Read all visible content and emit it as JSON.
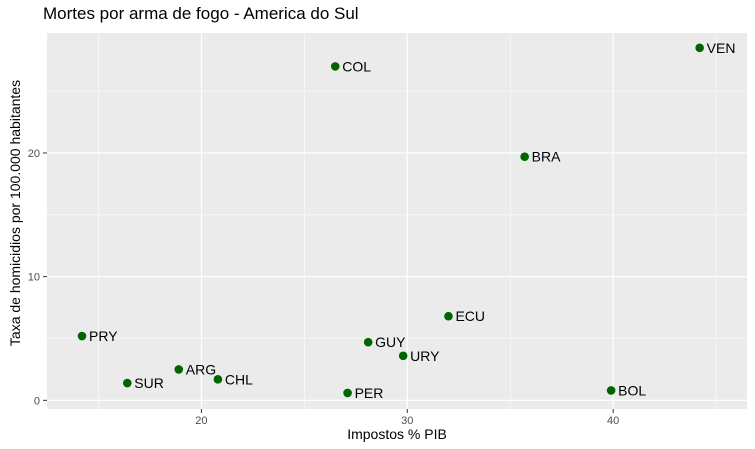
{
  "chart_data": {
    "type": "scatter",
    "title": "Mortes por arma de fogo - America do Sul",
    "xlabel": "Impostos % PIB",
    "ylabel": "Taxa de homicidios por 100.000 habitantes",
    "xlim": [
      12.5,
      46.5
    ],
    "ylim": [
      -0.7,
      29.7
    ],
    "x_ticks": [
      20,
      30,
      40
    ],
    "y_ticks": [
      0,
      10,
      20
    ],
    "grid": true,
    "point_color": "#006400",
    "panel_background": "#ebebeb",
    "points": [
      {
        "label": "VEN",
        "x": 44.2,
        "y": 28.5
      },
      {
        "label": "COL",
        "x": 26.5,
        "y": 27.0
      },
      {
        "label": "BRA",
        "x": 35.7,
        "y": 19.7
      },
      {
        "label": "ECU",
        "x": 32.0,
        "y": 6.8
      },
      {
        "label": "PRY",
        "x": 14.2,
        "y": 5.2
      },
      {
        "label": "GUY",
        "x": 28.1,
        "y": 4.7
      },
      {
        "label": "URY",
        "x": 29.8,
        "y": 3.6
      },
      {
        "label": "ARG",
        "x": 18.9,
        "y": 2.5
      },
      {
        "label": "CHL",
        "x": 20.8,
        "y": 1.7
      },
      {
        "label": "SUR",
        "x": 16.4,
        "y": 1.4
      },
      {
        "label": "BOL",
        "x": 39.9,
        "y": 0.8
      },
      {
        "label": "PER",
        "x": 27.1,
        "y": 0.6
      }
    ]
  }
}
